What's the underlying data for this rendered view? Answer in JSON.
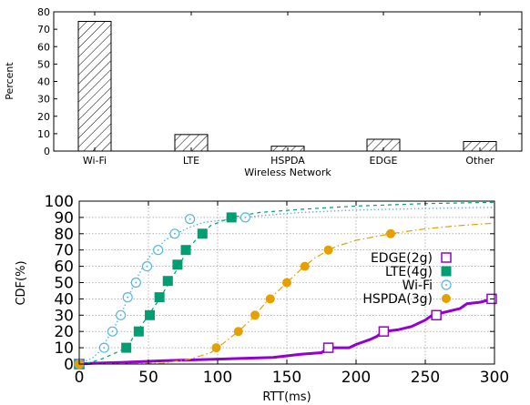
{
  "chart_data": [
    {
      "type": "bar",
      "categories": [
        "Wi-Fi",
        "LTE",
        "HSPDA",
        "EDGE",
        "Other"
      ],
      "values": [
        74.5,
        9.5,
        2.8,
        6.8,
        5.5
      ],
      "xlabel": "Wireless Network",
      "ylabel": "Percent",
      "ylim": [
        0,
        80
      ],
      "yticks": [
        0,
        10,
        20,
        30,
        40,
        50,
        60,
        70,
        80
      ],
      "bar_fill": "hatched",
      "grid": false
    },
    {
      "type": "line",
      "xlabel": "RTT(ms)",
      "ylabel": "CDF(%)",
      "xlim": [
        0,
        300
      ],
      "ylim": [
        0,
        100
      ],
      "xticks": [
        0,
        50,
        100,
        150,
        200,
        250,
        300
      ],
      "yticks": [
        0,
        10,
        20,
        30,
        40,
        50,
        60,
        70,
        80,
        90,
        100
      ],
      "grid": true,
      "legend_position": "right",
      "series": [
        {
          "name": "EDGE(2g)",
          "color": "#9400d3",
          "marker": "open-square",
          "line": "solid-thick",
          "x": [
            0,
            10,
            30,
            60,
            100,
            140,
            160,
            175,
            180,
            195,
            200,
            210,
            215,
            220,
            230,
            240,
            250,
            255,
            260,
            275,
            280,
            290,
            298
          ],
          "y": [
            0,
            0.5,
            1,
            2,
            3,
            4,
            6,
            7,
            10,
            10,
            12,
            15,
            17,
            20,
            21,
            23,
            27,
            30,
            31,
            34,
            37,
            38,
            40
          ]
        },
        {
          "name": "LTE(4g)",
          "color": "#009e73",
          "marker": "filled-square",
          "line": "dashed",
          "x": [
            0,
            8,
            16,
            24,
            34,
            42,
            50,
            58,
            65,
            72,
            78,
            86,
            95,
            110,
            130,
            160,
            200,
            250,
            300
          ],
          "y": [
            0,
            1,
            3,
            6,
            10,
            20,
            30,
            40,
            50,
            60,
            70,
            78,
            85,
            90,
            93,
            95,
            97,
            98.5,
            99.3
          ]
        },
        {
          "name": "Wi-Fi",
          "color": "#56b4e9",
          "marker": "open-circle-dot",
          "line": "dotted",
          "x": [
            0,
            5,
            10,
            15,
            20,
            25,
            30,
            35,
            40,
            45,
            50,
            55,
            62,
            70,
            80,
            90,
            110,
            130,
            160,
            200,
            250,
            300
          ],
          "y": [
            0,
            2,
            4,
            8,
            15,
            22,
            30,
            40,
            50,
            58,
            65,
            70,
            76,
            80,
            84,
            87,
            89,
            91,
            93,
            94.5,
            95.5,
            96.2
          ]
        },
        {
          "name": "HSPDA(3g)",
          "color": "#e69f00",
          "marker": "filled-circle",
          "line": "dash-dot",
          "x": [
            0,
            60,
            80,
            95,
            100,
            115,
            125,
            135,
            150,
            160,
            170,
            185,
            200,
            225,
            250,
            275,
            300
          ],
          "y": [
            0,
            0.5,
            3,
            7,
            10,
            20,
            28,
            38,
            50,
            58,
            65,
            72,
            76,
            80,
            83,
            85,
            86.5
          ]
        }
      ],
      "markers": {
        "EDGE(2g)": [
          [
            0,
            0
          ],
          [
            180,
            10
          ],
          [
            220,
            20
          ],
          [
            258,
            30
          ],
          [
            298,
            40
          ]
        ],
        "LTE(4g)": [
          [
            0,
            0
          ],
          [
            34,
            10
          ],
          [
            43,
            20
          ],
          [
            51,
            30
          ],
          [
            58,
            41
          ],
          [
            64,
            51
          ],
          [
            71,
            61
          ],
          [
            77,
            70
          ],
          [
            89,
            80
          ],
          [
            110,
            90
          ]
        ],
        "Wi-Fi": [
          [
            0,
            0
          ],
          [
            18,
            10
          ],
          [
            24,
            20
          ],
          [
            30,
            30
          ],
          [
            35,
            41
          ],
          [
            41,
            50
          ],
          [
            49,
            60
          ],
          [
            57,
            70
          ],
          [
            69,
            80
          ],
          [
            80,
            89
          ],
          [
            120,
            90
          ]
        ],
        "HSPDA(3g)": [
          [
            0,
            0
          ],
          [
            99,
            10
          ],
          [
            115,
            20
          ],
          [
            127,
            30
          ],
          [
            138,
            40
          ],
          [
            150,
            50
          ],
          [
            163,
            60
          ],
          [
            180,
            70
          ],
          [
            225,
            80
          ]
        ]
      }
    }
  ]
}
